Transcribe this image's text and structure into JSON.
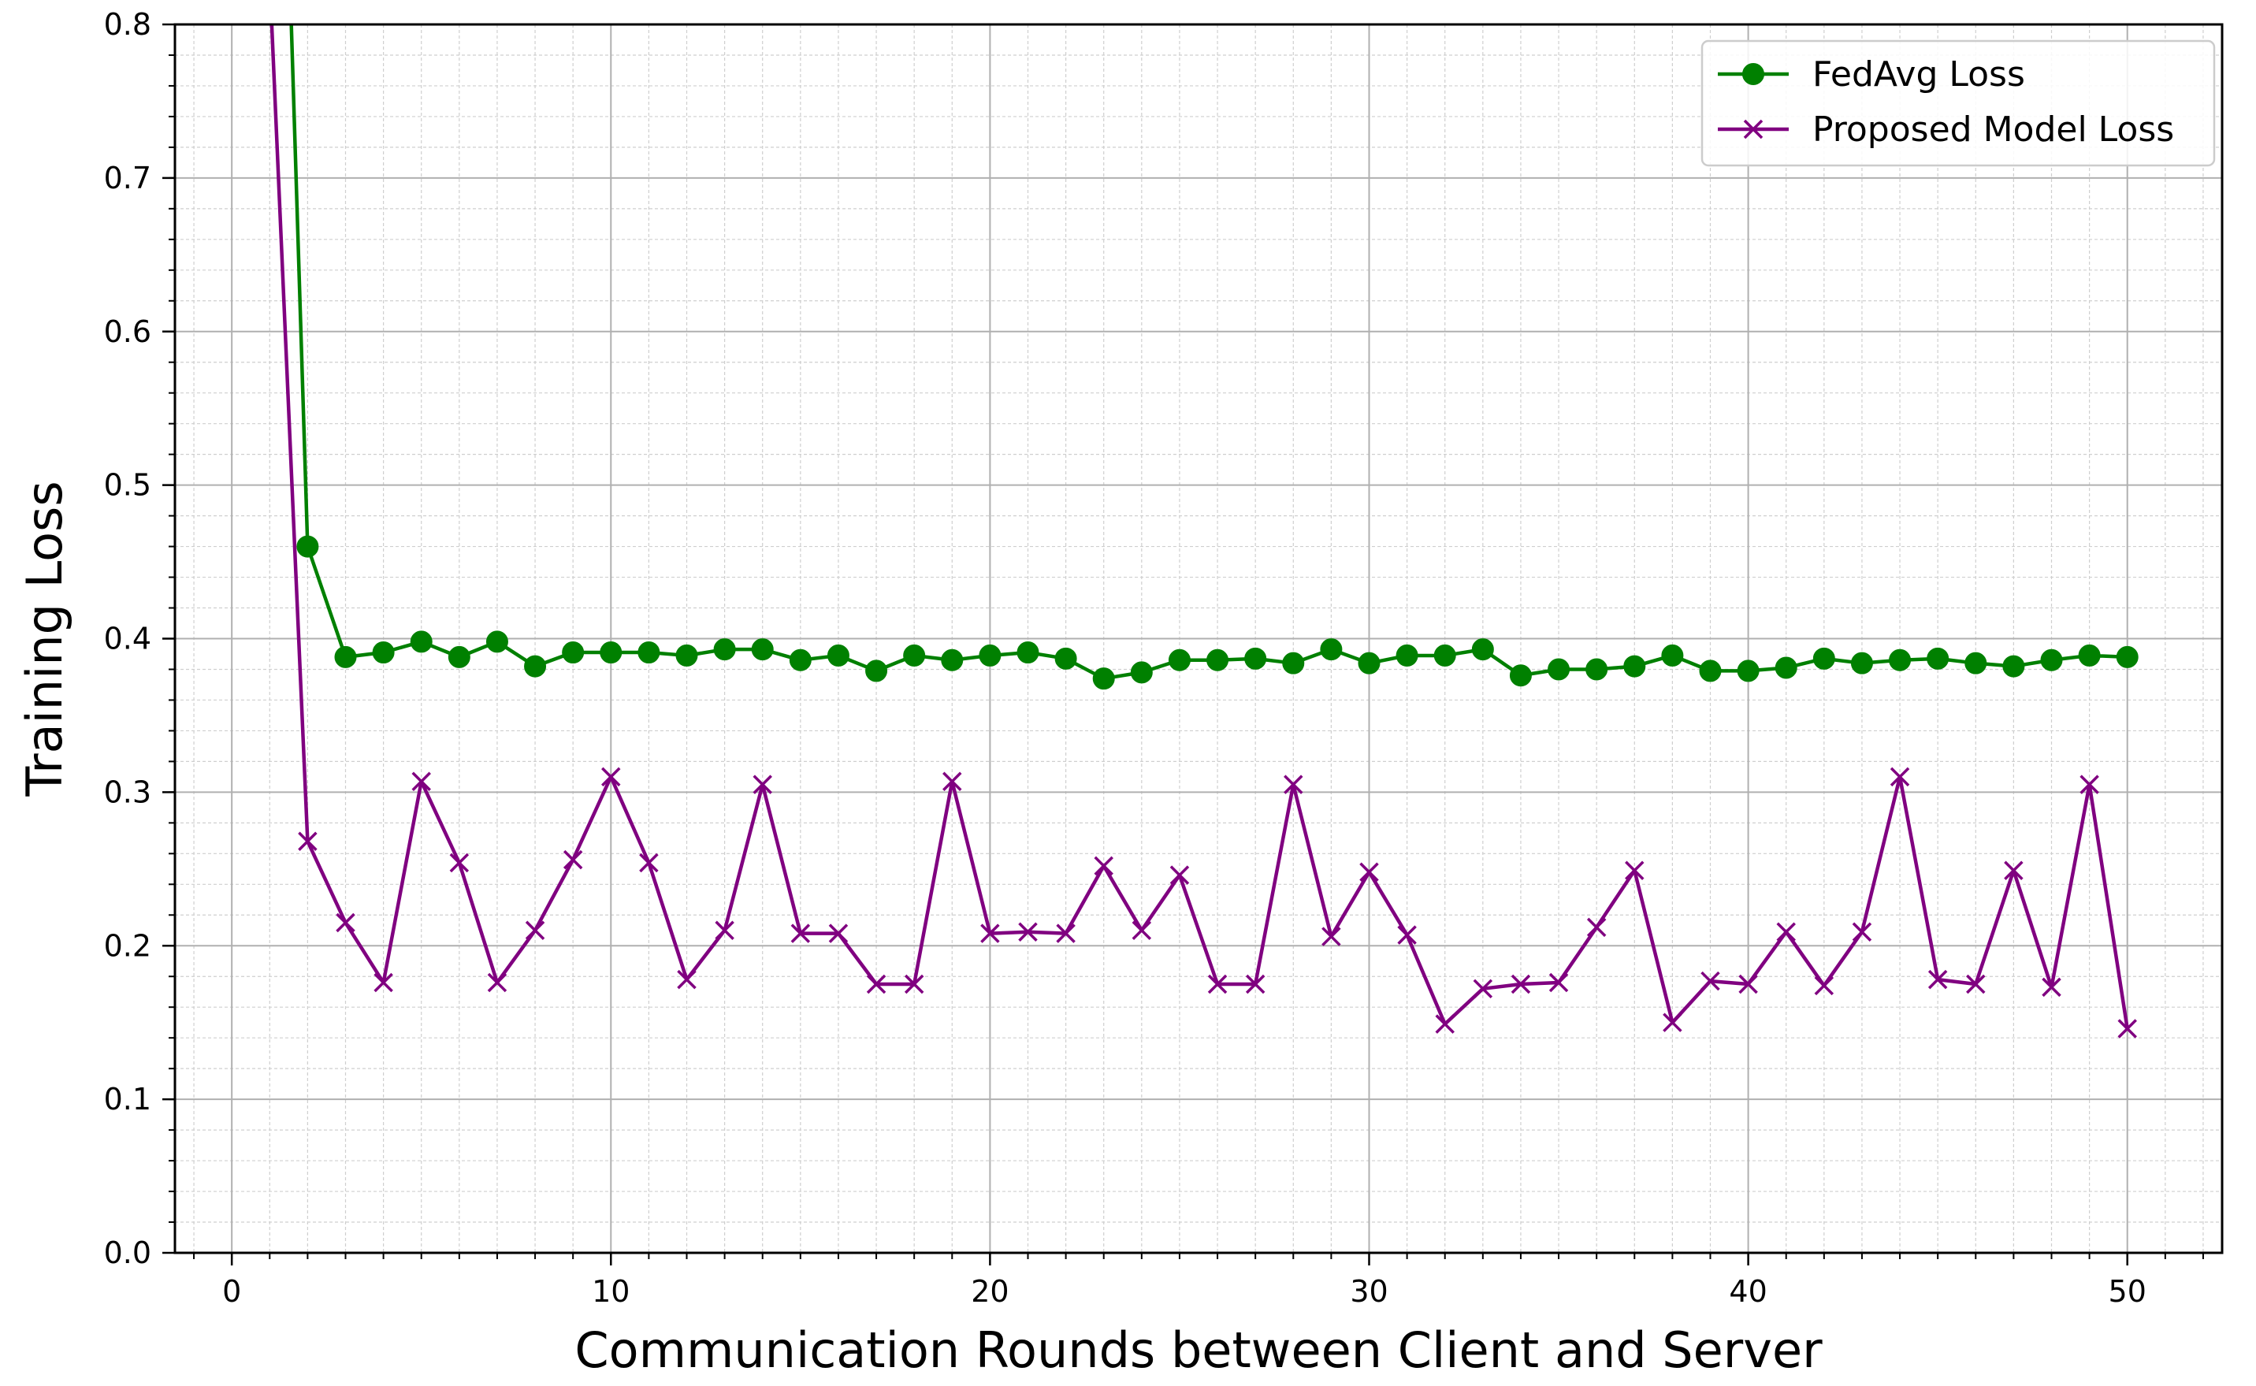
{
  "chart_data": {
    "type": "line",
    "title": "",
    "xlabel": "Communication Rounds between Client and Server",
    "ylabel": "Training Loss",
    "xlim": [
      -1.5,
      52.5
    ],
    "ylim": [
      0.0,
      0.8
    ],
    "xticks": [
      0,
      10,
      20,
      30,
      40,
      50
    ],
    "yticks": [
      0.0,
      0.1,
      0.2,
      0.3,
      0.4,
      0.5,
      0.6,
      0.7,
      0.8
    ],
    "x_tick_labels": [
      "0",
      "10",
      "20",
      "30",
      "40",
      "50"
    ],
    "y_tick_labels": [
      "0.0",
      "0.1",
      "0.2",
      "0.3",
      "0.4",
      "0.5",
      "0.6",
      "0.7",
      "0.8"
    ],
    "grid": "major and minor",
    "legend_position": "upper right",
    "series": [
      {
        "name": "FedAvg Loss",
        "color": "#008000",
        "marker": "circle",
        "x": [
          1,
          2,
          3,
          4,
          5,
          6,
          7,
          8,
          9,
          10,
          11,
          12,
          13,
          14,
          15,
          16,
          17,
          18,
          19,
          20,
          21,
          22,
          23,
          24,
          25,
          26,
          27,
          28,
          29,
          30,
          31,
          32,
          33,
          34,
          35,
          36,
          37,
          38,
          39,
          40,
          41,
          42,
          43,
          44,
          45,
          46,
          47,
          48,
          49,
          50
        ],
        "values": [
          1.25,
          0.46,
          0.388,
          0.391,
          0.398,
          0.388,
          0.398,
          0.382,
          0.391,
          0.391,
          0.391,
          0.389,
          0.393,
          0.393,
          0.386,
          0.389,
          0.379,
          0.389,
          0.386,
          0.389,
          0.391,
          0.387,
          0.374,
          0.378,
          0.386,
          0.386,
          0.387,
          0.384,
          0.393,
          0.384,
          0.389,
          0.389,
          0.393,
          0.376,
          0.38,
          0.38,
          0.382,
          0.389,
          0.379,
          0.379,
          0.381,
          0.387,
          0.384,
          0.386,
          0.387,
          0.384,
          0.382,
          0.386,
          0.389,
          0.388
        ]
      },
      {
        "name": "Proposed Model Loss",
        "color": "#800080",
        "marker": "x",
        "x": [
          1,
          2,
          3,
          4,
          5,
          6,
          7,
          8,
          9,
          10,
          11,
          12,
          13,
          14,
          15,
          16,
          17,
          18,
          19,
          20,
          21,
          22,
          23,
          24,
          25,
          26,
          27,
          28,
          29,
          30,
          31,
          32,
          33,
          34,
          35,
          36,
          37,
          38,
          39,
          40,
          41,
          42,
          43,
          44,
          45,
          46,
          47,
          48,
          49,
          50
        ],
        "values": [
          0.83,
          0.268,
          0.215,
          0.176,
          0.307,
          0.254,
          0.176,
          0.21,
          0.256,
          0.31,
          0.254,
          0.178,
          0.21,
          0.305,
          0.208,
          0.208,
          0.175,
          0.175,
          0.307,
          0.208,
          0.209,
          0.208,
          0.252,
          0.21,
          0.246,
          0.175,
          0.175,
          0.305,
          0.206,
          0.248,
          0.207,
          0.149,
          0.172,
          0.175,
          0.176,
          0.212,
          0.249,
          0.15,
          0.177,
          0.175,
          0.209,
          0.174,
          0.209,
          0.31,
          0.178,
          0.175,
          0.249,
          0.173,
          0.305,
          0.146
        ]
      }
    ]
  }
}
